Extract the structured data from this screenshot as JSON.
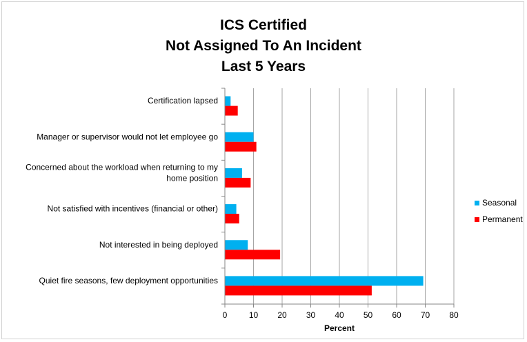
{
  "chart_data": {
    "type": "bar",
    "orientation": "horizontal",
    "title": [
      "ICS Certified",
      "Not Assigned To An Incident",
      "Last 5 Years"
    ],
    "categories": [
      [
        "Certification lapsed"
      ],
      [
        "Manager or supervisor would not let employee go"
      ],
      [
        "Concerned about the workload when returning to my",
        "home position"
      ],
      [
        "Not satisfied with incentives (financial or other)"
      ],
      [
        "Not interested in being deployed"
      ],
      [
        "Quiet fire seasons, few deployment opportunities"
      ]
    ],
    "series": [
      {
        "name": "Seasonal",
        "color": "#00b0f0",
        "values": [
          2,
          10,
          6,
          4,
          8,
          69.3
        ]
      },
      {
        "name": "Permanent",
        "color": "#ff0000",
        "values": [
          4.5,
          11,
          9,
          5,
          19.3,
          51.3
        ]
      }
    ],
    "xlabel": "Percent",
    "xlim": [
      0,
      80
    ],
    "xticks": [
      "0",
      "10",
      "20",
      "30",
      "40",
      "50",
      "60",
      "70",
      "80"
    ],
    "grid": true,
    "legend_position": "right"
  }
}
